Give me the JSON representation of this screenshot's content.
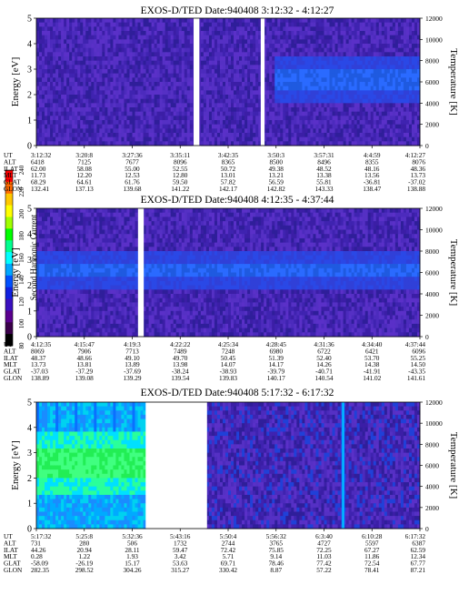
{
  "colorbar": {
    "label": "Second Harmonic Current",
    "ticks": [
      "240",
      "220",
      "200",
      "180",
      "160",
      "140",
      "120",
      "100",
      "80"
    ],
    "colors": [
      "#ff0000",
      "#ff6a00",
      "#ffc800",
      "#ffff00",
      "#a0ff00",
      "#00ff00",
      "#00ff90",
      "#00ffff",
      "#00a8ff",
      "#0050ff",
      "#1020e0",
      "#3a10c0",
      "#5a008e",
      "#3a004a",
      "#000000"
    ],
    "range": [
      80,
      240
    ]
  },
  "chart_data": [
    {
      "type": "heatmap",
      "title": "EXOS-D/TED   Date:940408  3:12:32 - 4:12:27",
      "ylabel": "Energy [eV]",
      "y2label": "Temperature [K]",
      "ylim": [
        0,
        5
      ],
      "y2lim": [
        0,
        12000
      ],
      "yticks": [
        "0",
        "1",
        "2",
        "3",
        "4",
        "5"
      ],
      "y2ticks": [
        "0",
        "2000",
        "4000",
        "6000",
        "8000",
        "10000",
        "12000"
      ],
      "gaps": [
        [
          0.41,
          0.425
        ],
        [
          0.585,
          0.595
        ]
      ],
      "band": {
        "kind": "upper-after",
        "start": 0.62,
        "center": 2.6,
        "width": 0.9
      },
      "table": {
        "labels": [
          "UT",
          "ALT",
          "ILAT",
          "MLT",
          "GLAT",
          "GLON"
        ],
        "columns": [
          [
            "3:12:32",
            "6418",
            "62.00",
            "11.73",
            "68.29",
            "132.41"
          ],
          [
            "3:20:8",
            "7125",
            "58.08",
            "12.20",
            "64.61",
            "137.13"
          ],
          [
            "3:27:36",
            "7677",
            "55.00",
            "12.53",
            "61.76",
            "139.68"
          ],
          [
            "3:35:11",
            "8096",
            "52.55",
            "12.80",
            "59.50",
            "141.22"
          ],
          [
            "3:42:35",
            "8365",
            "50.72",
            "13.01",
            "57.82",
            "142.17"
          ],
          [
            "3:50:3",
            "8500",
            "49.38",
            "13.21",
            "56.59",
            "142.82"
          ],
          [
            "3:57:31",
            "8496",
            "48.52",
            "13.38",
            "55.81",
            "143.33"
          ],
          [
            "4:4:59",
            "8355",
            "48.16",
            "13.56",
            "-36.81",
            "138.47"
          ],
          [
            "4:12:27",
            "8076",
            "48.36",
            "13.73",
            "-37.02",
            "138.88"
          ]
        ]
      }
    },
    {
      "type": "heatmap",
      "title": "EXOS-D/TED   Date:940408  4:12:35 - 4:37:44",
      "ylabel": "Energy [eV]",
      "y2label": "Temperature [K]",
      "ylim": [
        0,
        5
      ],
      "y2lim": [
        0,
        12000
      ],
      "yticks": [
        "0",
        "1",
        "2",
        "3",
        "4",
        "5"
      ],
      "y2ticks": [
        "0",
        "2000",
        "4000",
        "6000",
        "8000",
        "10000",
        "12000"
      ],
      "gaps": [
        [
          0.265,
          0.28
        ]
      ],
      "band": {
        "kind": "full",
        "start": 0,
        "center": 2.6,
        "width": 0.7
      },
      "table": {
        "labels": [
          "UT",
          "ALT",
          "ILAT",
          "MLT",
          "GLAT",
          "GLON"
        ],
        "columns": [
          [
            "4:12:35",
            "8069",
            "48.37",
            "13.73",
            "-37.03",
            "138.89"
          ],
          [
            "4:15:47",
            "7906",
            "48.66",
            "13.81",
            "-37.29",
            "139.08"
          ],
          [
            "4:19:3",
            "7713",
            "49.10",
            "13.89",
            "-37.69",
            "139.29"
          ],
          [
            "4:22:22",
            "7489",
            "49.70",
            "13.98",
            "-38.24",
            "139.54"
          ],
          [
            "4:25:34",
            "7248",
            "50.45",
            "14.07",
            "-38.93",
            "139.83"
          ],
          [
            "4:28:45",
            "6980",
            "51.39",
            "14.17",
            "-39.79",
            "140.17"
          ],
          [
            "4:31:36",
            "6722",
            "52.40",
            "14.26",
            "-40.71",
            "140.54"
          ],
          [
            "4:34:40",
            "6421",
            "53.70",
            "14.38",
            "-41.91",
            "141.02"
          ],
          [
            "4:37:44",
            "6096",
            "55.25",
            "14.50",
            "-43.35",
            "141.61"
          ]
        ]
      }
    },
    {
      "type": "heatmap",
      "title": "EXOS-D/TED   Date:940408  5:17:32 - 6:17:32",
      "ylabel": "Energy [eV]",
      "y2label": "Temperature [K]",
      "ylim": [
        0,
        5
      ],
      "y2lim": [
        0,
        12000
      ],
      "yticks": [
        "0",
        "1",
        "2",
        "3",
        "4",
        "5"
      ],
      "y2ticks": [
        "0",
        "2000",
        "4000",
        "6000",
        "8000",
        "10000",
        "12000"
      ],
      "gaps": [
        [
          0.285,
          0.445
        ]
      ],
      "band": {
        "kind": "green-left",
        "start": 0,
        "center": 2.6,
        "width": 1.2
      },
      "table": {
        "labels": [
          "UT",
          "ALT",
          "ILAT",
          "MLT",
          "GLAT",
          "GLON"
        ],
        "columns": [
          [
            "5:17:32",
            "731",
            "44.26",
            "0.28",
            "-58.09",
            "282.35"
          ],
          [
            "5:25:8",
            "280",
            "20.94",
            "1.22",
            "-26.19",
            "298.52"
          ],
          [
            "5:32:36",
            "506",
            "28.11",
            "1.93",
            "15.17",
            "304.26"
          ],
          [
            "5:43:16",
            "1732",
            "59.47",
            "3.42",
            "53.63",
            "315.27"
          ],
          [
            "5:50:4",
            "2744",
            "72.42",
            "5.71",
            "69.71",
            "330.42"
          ],
          [
            "5:56:32",
            "3765",
            "75.85",
            "9.14",
            "78.46",
            "8.87"
          ],
          [
            "6:3:40",
            "4727",
            "72.25",
            "11.03",
            "77.42",
            "57.22"
          ],
          [
            "6:10:28",
            "5597",
            "67.27",
            "11.86",
            "72.54",
            "78.41"
          ],
          [
            "6:17:32",
            "6387",
            "62.59",
            "12.34",
            "67.77",
            "87.21"
          ]
        ]
      }
    }
  ]
}
